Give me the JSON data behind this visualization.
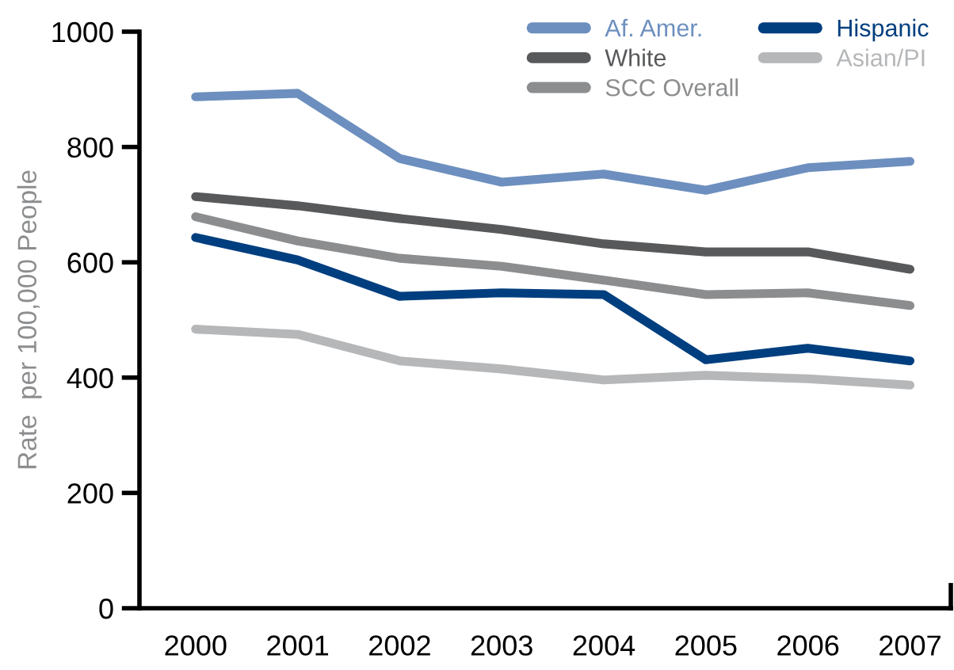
{
  "chart_data": {
    "type": "line",
    "ylabel": "Rate  per 100,000 People",
    "categories": [
      "2000",
      "2001",
      "2002",
      "2003",
      "2004",
      "2005",
      "2006",
      "2007"
    ],
    "series": [
      {
        "name": "Af. Amer.",
        "color": "#6d8fbf",
        "values": [
          887,
          893,
          780,
          739,
          753,
          725,
          764,
          775
        ]
      },
      {
        "name": "White",
        "color": "#58595b",
        "values": [
          714,
          698,
          676,
          657,
          632,
          618,
          618,
          588
        ]
      },
      {
        "name": "SCC Overall",
        "color": "#8c8d8f",
        "values": [
          679,
          637,
          607,
          593,
          569,
          544,
          547,
          525
        ]
      },
      {
        "name": "Hispanic",
        "color": "#003f7f",
        "values": [
          643,
          604,
          541,
          547,
          544,
          431,
          451,
          429
        ]
      },
      {
        "name": "Asian/PI",
        "color": "#b5b7b9",
        "values": [
          484,
          475,
          429,
          415,
          396,
          404,
          398,
          387
        ]
      }
    ],
    "ylim": [
      0,
      1000
    ],
    "yticks": [
      0,
      200,
      400,
      600,
      800,
      1000
    ],
    "grid": false,
    "legend": "top right",
    "marker": "none",
    "line_style": "solid"
  }
}
